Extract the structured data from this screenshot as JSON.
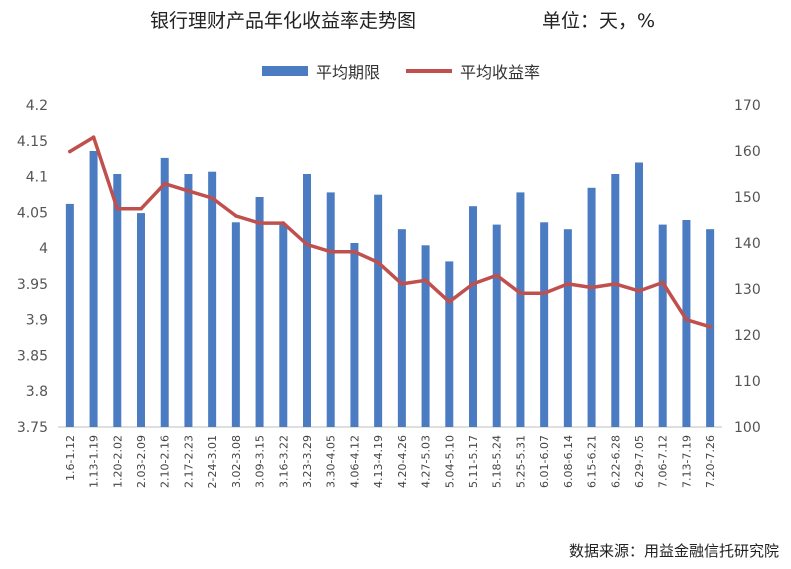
{
  "title": "银行理财产品年化收益率走势图",
  "unit": "单位：天，%",
  "source": "数据来源：用益金融信托研究院",
  "chart_data": {
    "type": "bar",
    "categories": [
      "1.6-1.12",
      "1.13-1.19",
      "1.20-2.02",
      "2.03-2.09",
      "2.10-2.16",
      "2.17-2.23",
      "2-24-3.01",
      "3.02-3.08",
      "3.09-3.15",
      "3.16-3.22",
      "3.23-3.29",
      "3.30-4.05",
      "4.06-4.12",
      "4.13-4.19",
      "4.20-4.26",
      "4.27-5.03",
      "5.04-5.10",
      "5.11-5.17",
      "5.18-5.24",
      "5.25-5.31",
      "6.01-6.07",
      "6.08-6.14",
      "6.15-6.21",
      "6.22-6.28",
      "6.29-7.05",
      "7.06-7.12",
      "7.13-7.19",
      "7.20-7.26"
    ],
    "series": [
      {
        "name": "平均期限",
        "type": "bar",
        "axis": "right",
        "color": "#4b7cc1",
        "values": [
          148.5,
          160.0,
          155.0,
          146.5,
          158.5,
          155.0,
          155.5,
          144.5,
          150.0,
          144.0,
          155.0,
          151.0,
          140.0,
          150.5,
          143.0,
          139.5,
          136.0,
          148.0,
          144.0,
          151.0,
          144.5,
          143.0,
          152.0,
          155.0,
          157.5,
          144.0,
          145.0,
          143.0
        ]
      },
      {
        "name": "平均收益率",
        "type": "line",
        "axis": "left",
        "color": "#c0504d",
        "values": [
          4.135,
          4.155,
          4.055,
          4.055,
          4.09,
          4.08,
          4.07,
          4.045,
          4.035,
          4.035,
          4.005,
          3.995,
          3.995,
          3.98,
          3.95,
          3.955,
          3.925,
          3.95,
          3.962,
          3.937,
          3.937,
          3.95,
          3.945,
          3.95,
          3.94,
          3.952,
          3.9,
          3.89
        ]
      }
    ],
    "yleft": {
      "min": 3.75,
      "max": 4.2,
      "ticks": [
        "3.75",
        "3.8",
        "3.85",
        "3.9",
        "3.95",
        "4",
        "4.05",
        "4.1",
        "4.15",
        "4.2"
      ]
    },
    "yright": {
      "min": 100,
      "max": 170,
      "ticks": [
        "100",
        "110",
        "120",
        "130",
        "140",
        "150",
        "160",
        "170"
      ]
    },
    "grid": false,
    "legend": "top-center"
  }
}
